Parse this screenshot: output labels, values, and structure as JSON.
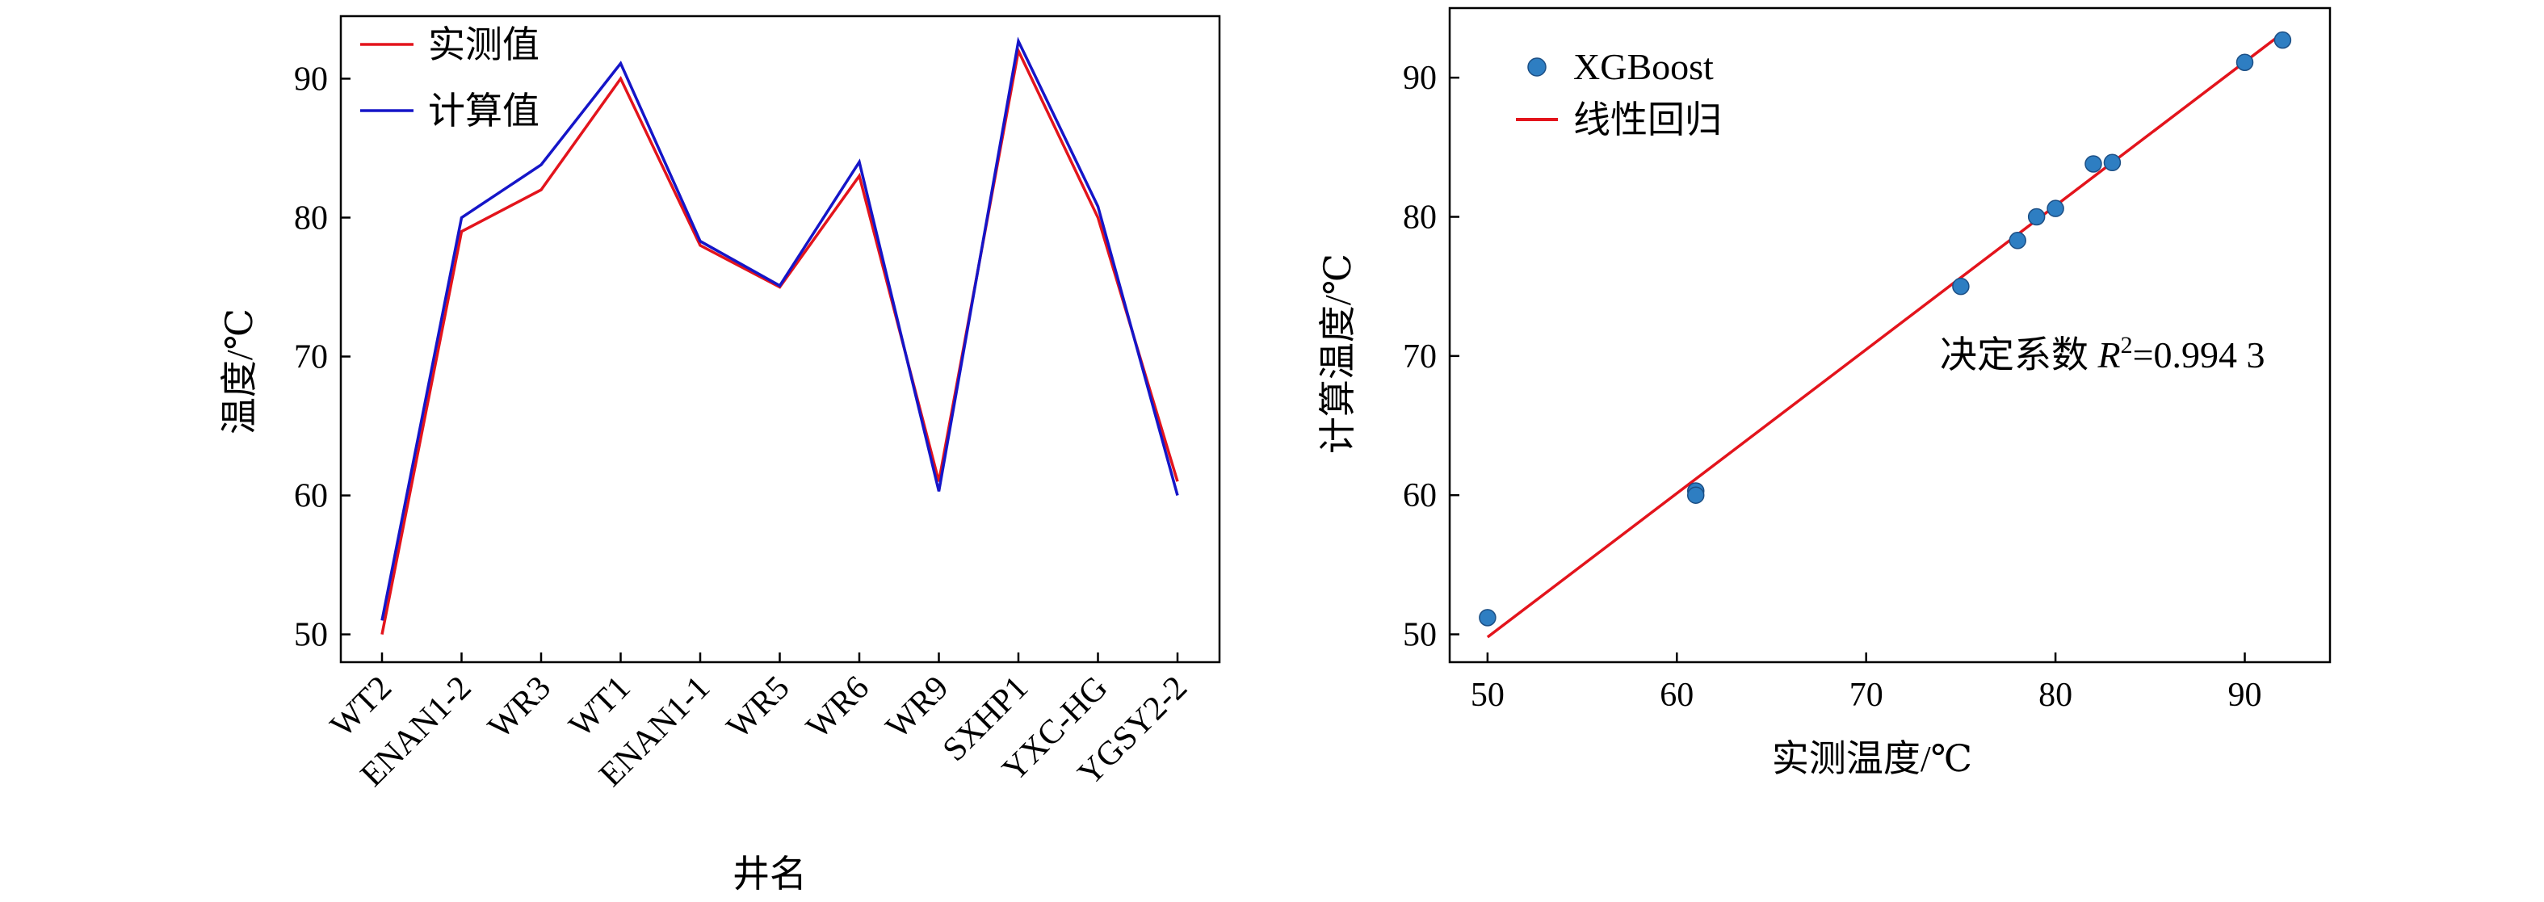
{
  "chart_data": [
    {
      "type": "line",
      "xlabel": "井名",
      "ylabel": "温度/℃",
      "categories": [
        "WT2",
        "ENAN1-2",
        "WR3",
        "WT1",
        "ENAN1-1",
        "WR5",
        "WR6",
        "WR9",
        "SXHP1",
        "YXC-HG",
        "YGSY2-2"
      ],
      "ylim": [
        48,
        94.5
      ],
      "yticks": [
        50,
        60,
        70,
        80,
        90
      ],
      "legend_position": "top-left",
      "series": [
        {
          "name": "实测值",
          "color": "#e3141c",
          "values": [
            50,
            79,
            82,
            90,
            78,
            75,
            83,
            61,
            92,
            80,
            61
          ]
        },
        {
          "name": "计算值",
          "color": "#1515c8",
          "values": [
            51,
            80,
            83.8,
            91.1,
            78.3,
            75.1,
            84,
            60.3,
            92.7,
            80.8,
            60
          ]
        }
      ]
    },
    {
      "type": "scatter",
      "xlabel": "实测温度/℃",
      "ylabel": "计算温度/℃",
      "xlim": [
        48,
        94.5
      ],
      "ylim": [
        48,
        95
      ],
      "xticks": [
        50,
        60,
        70,
        80,
        90
      ],
      "yticks": [
        50,
        60,
        70,
        80,
        90
      ],
      "legend_position": "top-left",
      "series": [
        {
          "name": "XGBoost",
          "color": "#2e7ec2",
          "x": [
            50,
            61,
            61,
            75,
            78,
            79,
            80,
            82,
            83,
            90,
            92
          ],
          "y": [
            51.2,
            60.3,
            60,
            75,
            78.3,
            80,
            80.6,
            83.8,
            83.9,
            91.1,
            92.7
          ]
        },
        {
          "name": "线性回归",
          "color": "#e3141c",
          "line": [
            [
              50,
              49.8
            ],
            [
              92,
              93.2
            ]
          ]
        }
      ],
      "annotation": {
        "prefix": "决定系数 ",
        "var": "R",
        "sup": "2",
        "suffix": "=0.994 3"
      }
    }
  ]
}
